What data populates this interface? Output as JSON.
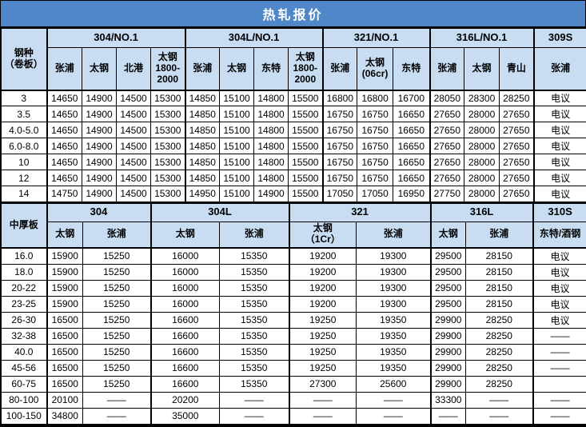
{
  "title": "热轧报价",
  "colors": {
    "title_bg": "#4f87c9",
    "header_bg": "#c8dcf2",
    "title_text": "#ffffff",
    "border": "#000000"
  },
  "negotiable_label": "电议",
  "coil_section": {
    "row_header": "钢种\n（卷板）",
    "groups": [
      {
        "label": "304/NO.1",
        "span": 4
      },
      {
        "label": "304L/NO.1",
        "span": 4
      },
      {
        "label": "321/NO.1",
        "span": 3
      },
      {
        "label": "316L/NO.1",
        "span": 3
      },
      {
        "label": "309S",
        "span": 1
      }
    ],
    "mills": [
      "张浦",
      "太钢",
      "北港",
      "太钢\n1800-\n2000",
      "张浦",
      "太钢",
      "东特",
      "太钢\n1800-\n2000",
      "张浦",
      "太钢\n(06cr)",
      "东特",
      "张浦",
      "太钢",
      "青山",
      "张浦"
    ],
    "rows": [
      {
        "label": "3",
        "values": [
          "14650",
          "14900",
          "14500",
          "15300",
          "14850",
          "15100",
          "14800",
          "15500",
          "16800",
          "16800",
          "16700",
          "28050",
          "28300",
          "28250",
          "电议"
        ]
      },
      {
        "label": "3.5",
        "values": [
          "14650",
          "14900",
          "14500",
          "15300",
          "14850",
          "15100",
          "14800",
          "15500",
          "16750",
          "16750",
          "16650",
          "27650",
          "28000",
          "27650",
          "电议"
        ]
      },
      {
        "label": "4.0-5.0",
        "values": [
          "14650",
          "14900",
          "14500",
          "15300",
          "14850",
          "15100",
          "14800",
          "15500",
          "16750",
          "16750",
          "16650",
          "27650",
          "28000",
          "27650",
          "电议"
        ]
      },
      {
        "label": "6.0-8.0",
        "values": [
          "14650",
          "14900",
          "14500",
          "15300",
          "14850",
          "15100",
          "14800",
          "15500",
          "16750",
          "16750",
          "16650",
          "27650",
          "28000",
          "27650",
          "电议"
        ]
      },
      {
        "label": "10",
        "values": [
          "14650",
          "14900",
          "14500",
          "15300",
          "14850",
          "15100",
          "14800",
          "15500",
          "16750",
          "16750",
          "16650",
          "27650",
          "28000",
          "27650",
          "电议"
        ]
      },
      {
        "label": "12",
        "values": [
          "14650",
          "14900",
          "14500",
          "15300",
          "14850",
          "15100",
          "14800",
          "15500",
          "16750",
          "16750",
          "16650",
          "27650",
          "28000",
          "27650",
          "电议"
        ]
      },
      {
        "label": "14",
        "values": [
          "14750",
          "14900",
          "14500",
          "15300",
          "14950",
          "15100",
          "14900",
          "15500",
          "17050",
          "17050",
          "16950",
          "27750",
          "28000",
          "27650",
          "电议"
        ]
      }
    ]
  },
  "plate_section": {
    "row_header": "中厚板",
    "groups": [
      {
        "label": "304",
        "span": 2
      },
      {
        "label": "304L",
        "span": 2
      },
      {
        "label": "321",
        "span": 2
      },
      {
        "label": "316L",
        "span": 2
      },
      {
        "label": "310S",
        "span": 1
      }
    ],
    "mills": [
      "太钢",
      "张浦",
      "太钢",
      "张浦",
      "太钢\n（1Cr）",
      "张浦",
      "太钢",
      "张浦",
      "东特/酒钢"
    ],
    "rows": [
      {
        "label": "16.0",
        "values": [
          "15900",
          "15250",
          "16000",
          "15350",
          "19200",
          "19300",
          "29500",
          "28150",
          "电议"
        ]
      },
      {
        "label": "18.0",
        "values": [
          "15900",
          "15250",
          "16000",
          "15350",
          "19200",
          "19300",
          "29500",
          "28150",
          "电议"
        ]
      },
      {
        "label": "20-22",
        "values": [
          "15900",
          "15250",
          "16000",
          "15350",
          "19200",
          "19300",
          "29500",
          "28150",
          "电议"
        ]
      },
      {
        "label": "23-25",
        "values": [
          "15900",
          "15250",
          "16000",
          "15350",
          "19200",
          "19300",
          "29500",
          "28150",
          "电议"
        ]
      },
      {
        "label": "26-30",
        "values": [
          "16500",
          "15250",
          "16600",
          "15350",
          "19250",
          "19350",
          "29900",
          "28250",
          "电议"
        ]
      },
      {
        "label": "32-38",
        "values": [
          "16500",
          "15250",
          "16600",
          "15350",
          "19250",
          "19350",
          "29900",
          "28250",
          "——"
        ]
      },
      {
        "label": "40.0",
        "values": [
          "16500",
          "15250",
          "16600",
          "15350",
          "19250",
          "19350",
          "29900",
          "28250",
          "——"
        ]
      },
      {
        "label": "45-56",
        "values": [
          "16500",
          "15250",
          "16600",
          "15350",
          "19250",
          "19350",
          "29900",
          "28250",
          "——"
        ]
      },
      {
        "label": "60-75",
        "values": [
          "16500",
          "15250",
          "16600",
          "15350",
          "27300",
          "25600",
          "29900",
          "28250",
          ""
        ]
      },
      {
        "label": "80-100",
        "values": [
          "20100",
          "——",
          "20200",
          "——",
          "——",
          "——",
          "33300",
          "——",
          "——"
        ]
      },
      {
        "label": "100-150",
        "values": [
          "34800",
          "——",
          "35000",
          "——",
          "——",
          "——",
          "——",
          "——",
          "——"
        ]
      }
    ]
  }
}
